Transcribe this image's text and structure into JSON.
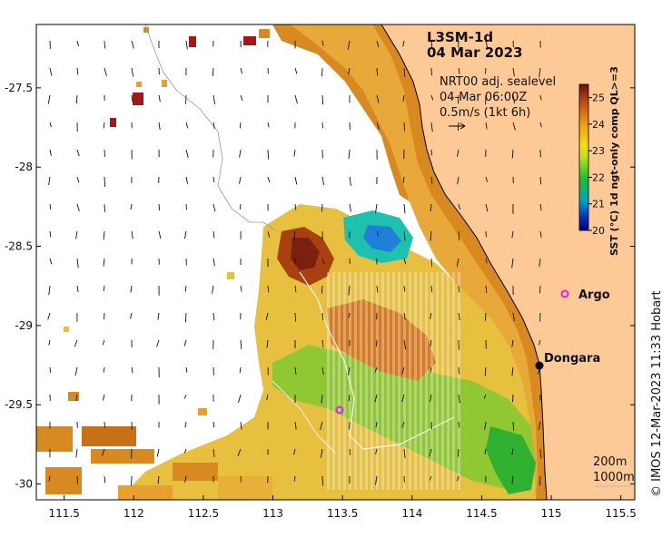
{
  "title": {
    "product": "L3SM-1d",
    "date": "04 Mar 2023"
  },
  "current_info": {
    "line1": "NRT00 adj. sealevel",
    "line2": "04-Mar 06:00Z",
    "line3": "0.5m/s (1kt 6h)"
  },
  "colorbar": {
    "label": "SST (°C) 1d ngt-only comp QL>=3",
    "ticks": [
      "25",
      "24",
      "23",
      "22",
      "21",
      "20"
    ],
    "range": [
      20,
      25.5
    ],
    "colors": [
      "#00007f",
      "#0030c0",
      "#00a0c8",
      "#20c030",
      "#b8e020",
      "#f0e010",
      "#f0a010",
      "#d06010",
      "#903010",
      "#6a0a0a"
    ]
  },
  "axes": {
    "x_ticks": [
      "111.5",
      "112",
      "112.5",
      "113",
      "113.5",
      "114",
      "114.5",
      "115",
      "115.5"
    ],
    "y_ticks": [
      "-27.5",
      "-28",
      "-28.5",
      "-29",
      "-29.5",
      "-30"
    ],
    "xlim": [
      111.3,
      115.6
    ],
    "ylim": [
      -30.1,
      -27.1
    ]
  },
  "markers": {
    "argo": {
      "label": "Argo",
      "lon": 115.1,
      "lat": -28.78,
      "color": "#e020e0"
    },
    "argo2": {
      "lon": 113.5,
      "lat": -29.55,
      "color": "#e020e0"
    },
    "dongara": {
      "label": "Dongara",
      "lon": 114.93,
      "lat": -29.25,
      "color": "#000000"
    }
  },
  "isobaths": {
    "shallow": "200m",
    "deep": "1000m"
  },
  "land_color": "#fdc996",
  "credit": "© IMOS 12-Mar-2023 11:33 Hobart"
}
